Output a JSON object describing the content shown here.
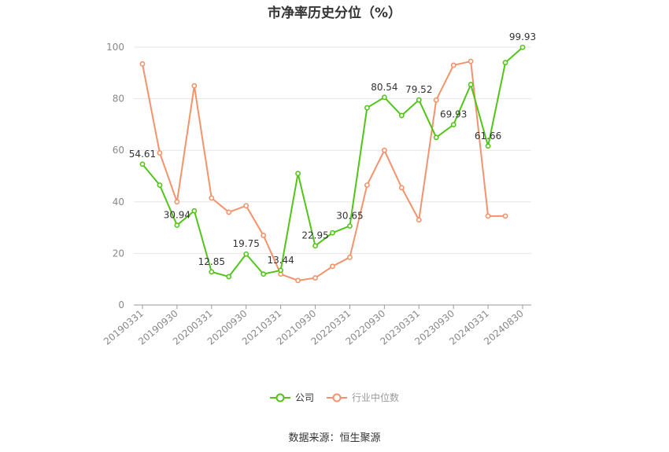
{
  "chart_data": {
    "type": "line",
    "title": "市净率历史分位（%）",
    "xlabel": "",
    "ylabel": "",
    "ylim": [
      0,
      100
    ],
    "yticks": [
      0,
      20,
      40,
      60,
      80,
      100
    ],
    "categories": [
      "20190331",
      "20190630",
      "20190930",
      "20191231",
      "20200331",
      "20200630",
      "20200930",
      "20201231",
      "20210331",
      "20210630",
      "20210930",
      "20211231",
      "20220331",
      "20220630",
      "20220930",
      "20221231",
      "20230331",
      "20230630",
      "20230930",
      "20231231",
      "20240331",
      "20240630",
      "20240830"
    ],
    "xtick_labels": [
      "20190331",
      "20190930",
      "20200331",
      "20200930",
      "20210331",
      "20210930",
      "20220331",
      "20220930",
      "20230331",
      "20230930",
      "20240331",
      "20240830"
    ],
    "series": [
      {
        "name": "公司",
        "color": "#52c41a",
        "values": [
          54.61,
          46.5,
          30.94,
          36.5,
          12.85,
          11.0,
          19.75,
          12.0,
          13.44,
          51.0,
          22.95,
          28.0,
          30.65,
          76.5,
          80.54,
          73.5,
          79.52,
          65.0,
          69.93,
          85.5,
          61.66,
          94.0,
          99.93
        ]
      },
      {
        "name": "行业中位数",
        "color": "#f4936b",
        "values": [
          93.5,
          59.0,
          40.0,
          85.0,
          41.5,
          36.0,
          38.5,
          27.0,
          12.0,
          9.5,
          10.5,
          15.0,
          18.5,
          46.5,
          60.0,
          45.5,
          33.0,
          79.5,
          93.0,
          94.5,
          34.5,
          34.5,
          null
        ]
      }
    ],
    "data_labels": [
      {
        "index": 0,
        "text": "54.61"
      },
      {
        "index": 2,
        "text": "30.94"
      },
      {
        "index": 4,
        "text": "12.85"
      },
      {
        "index": 6,
        "text": "19.75"
      },
      {
        "index": 8,
        "text": "13.44"
      },
      {
        "index": 10,
        "text": "22.95"
      },
      {
        "index": 12,
        "text": "30.65"
      },
      {
        "index": 14,
        "text": "80.54"
      },
      {
        "index": 16,
        "text": "79.52"
      },
      {
        "index": 18,
        "text": "69.93"
      },
      {
        "index": 20,
        "text": "61.66"
      },
      {
        "index": 22,
        "text": "99.93"
      }
    ],
    "grid": true,
    "legend_position": "bottom"
  },
  "legend": {
    "company": "公司",
    "industry": "行业中位数"
  },
  "source": "数据来源：恒生聚源"
}
